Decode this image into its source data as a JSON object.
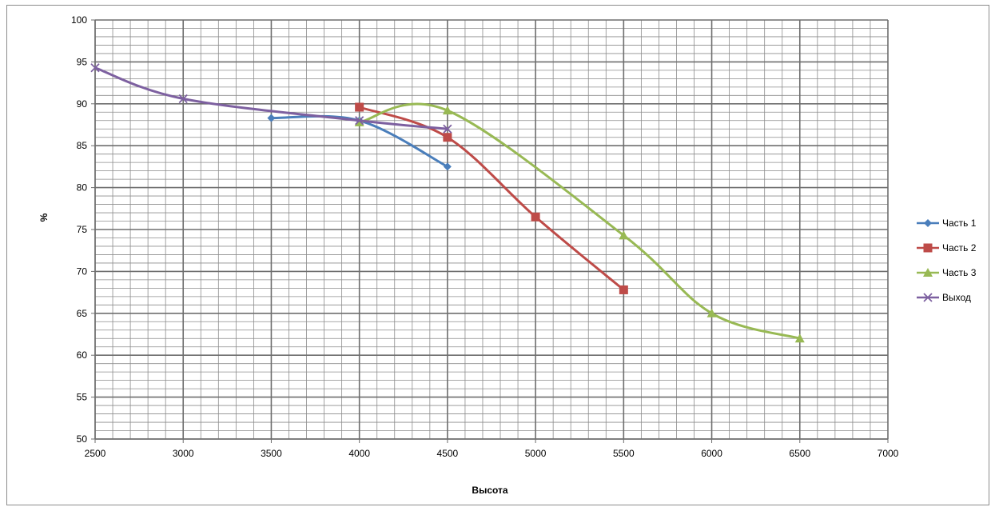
{
  "chart_data": {
    "type": "line",
    "title": "",
    "xlabel": "Высота",
    "ylabel": "%",
    "xlim": [
      2500,
      7000
    ],
    "ylim": [
      50,
      100
    ],
    "x_ticks": [
      2500,
      3000,
      3500,
      4000,
      4500,
      5000,
      5500,
      6000,
      6500,
      7000
    ],
    "y_ticks": [
      50,
      55,
      60,
      65,
      70,
      75,
      80,
      85,
      90,
      95,
      100
    ],
    "grid": true,
    "minor_grid": true,
    "legend_position": "right",
    "series": [
      {
        "name": "Часть 1",
        "color": "#4a7ebb",
        "marker": "diamond",
        "x": [
          3500,
          4000,
          4500
        ],
        "y": [
          88.3,
          88.0,
          82.5
        ]
      },
      {
        "name": "Часть 2",
        "color": "#be4b48",
        "marker": "square",
        "x": [
          4000,
          4500,
          5000,
          5500
        ],
        "y": [
          89.6,
          86.0,
          76.5,
          67.8
        ]
      },
      {
        "name": "Часть 3",
        "color": "#98b954",
        "marker": "triangle",
        "x": [
          4000,
          4500,
          5500,
          6000,
          6500
        ],
        "y": [
          87.8,
          89.2,
          74.3,
          65.0,
          62.0
        ]
      },
      {
        "name": "Выход",
        "color": "#7d60a0",
        "marker": "x",
        "x": [
          2500,
          3000,
          4000,
          4500
        ],
        "y": [
          94.3,
          90.6,
          88.0,
          87.0
        ]
      }
    ]
  }
}
